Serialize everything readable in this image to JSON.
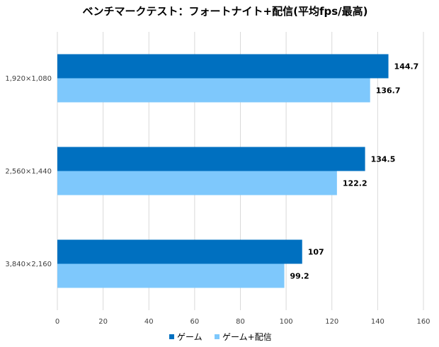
{
  "chart_data": {
    "type": "bar",
    "orientation": "horizontal",
    "title": "ベンチマークテスト：フォートナイト+配信(平均fps/最高)",
    "categories": [
      "1,920×1,080",
      "2,560×1,440",
      "3,840×2,160"
    ],
    "series": [
      {
        "name": "ゲーム",
        "color": "#0070c0",
        "values": [
          144.7,
          134.5,
          107
        ]
      },
      {
        "name": "ゲーム+配信",
        "color": "#7ec8fc",
        "values": [
          136.7,
          122.2,
          99.2
        ]
      }
    ],
    "value_labels": [
      [
        "144.7",
        "134.5",
        "107"
      ],
      [
        "136.7",
        "122.2",
        "99.2"
      ]
    ],
    "xlim": [
      0,
      160
    ],
    "xticks": [
      0,
      20,
      40,
      60,
      80,
      100,
      120,
      140,
      160
    ],
    "grid": "vertical",
    "legend": "bottom-center"
  }
}
